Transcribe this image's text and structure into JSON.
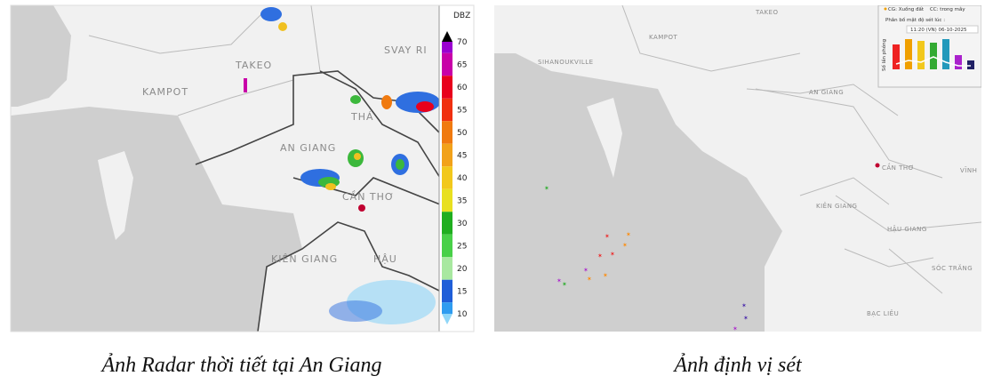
{
  "radar_map": {
    "labels": [
      "TAKEO",
      "KAMPOT",
      "SVAY RI",
      "AN GIANG",
      "THÁ",
      "CẦN THƠ",
      "KIÊN GIANG",
      "HẬU"
    ],
    "legend": {
      "unit": "DBZ",
      "ticks": [
        "70",
        "65",
        "60",
        "55",
        "50",
        "45",
        "40",
        "35",
        "30",
        "25",
        "20",
        "15",
        "10"
      ],
      "colors": [
        "#9a00d0",
        "#c800a8",
        "#e8001c",
        "#f03010",
        "#f07a10",
        "#f2a21a",
        "#f2c81c",
        "#e8e020",
        "#1fae1f",
        "#48d048",
        "#a8e8a0",
        "#1f5ed8",
        "#2f9cf0",
        "#8fd6f8"
      ]
    },
    "caption": "Ảnh Radar thời tiết tại An Giang"
  },
  "lightning_map": {
    "labels": [
      "KAMPOT",
      "TAKEO",
      "SIHANOUKVILLE",
      "AN GIANG",
      "CẦN THƠ",
      "KIÊN GIANG",
      "HẬU GIANG",
      "SÓC TRĂNG",
      "BẠC LIÊU",
      "VĨNH"
    ],
    "inset": {
      "legend": [
        "CG: Xuống đất",
        "CC: trong mây"
      ],
      "title": "Phân bố mật độ sét lúc :",
      "time": "11:20 (VN) 06-10-2025",
      "y_label": "Số lần phóng"
    },
    "caption": "Ảnh định vị sét"
  }
}
